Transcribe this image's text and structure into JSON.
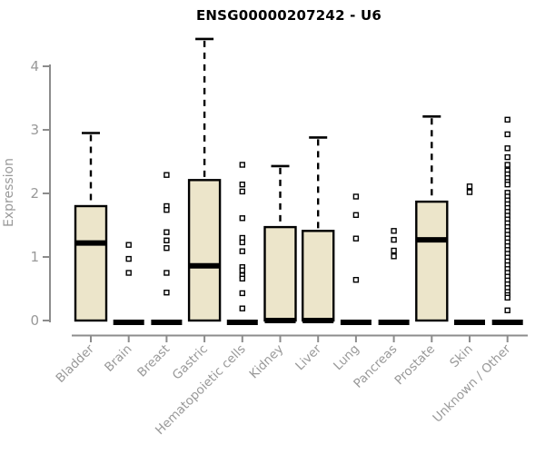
{
  "chart_data": {
    "type": "box",
    "title": "ENSG00000207242 - U6",
    "ylabel": "Expression",
    "xlabel": "",
    "ylim": [
      0,
      4
    ],
    "yticks": [
      0,
      1,
      2,
      3,
      4
    ],
    "grid": false,
    "legend": "none",
    "categories": [
      "Bladder",
      "Brain",
      "Breast",
      "Gastric",
      "Hematopoietic cells",
      "Kidney",
      "Liver",
      "Lung",
      "Pancreas",
      "Prostate",
      "Skin",
      "Unknown / Other"
    ],
    "series": [
      {
        "name": "Bladder",
        "q1": 0,
        "median": 1.22,
        "q3": 1.8,
        "whisker_low": 0,
        "whisker_high": 2.95,
        "outliers": []
      },
      {
        "name": "Brain",
        "q1": 0,
        "median": 0,
        "q3": 0,
        "whisker_low": 0,
        "whisker_high": 0,
        "outliers": [
          1.19,
          0.97,
          0.75
        ]
      },
      {
        "name": "Breast",
        "q1": 0,
        "median": 0,
        "q3": 0,
        "whisker_low": 0,
        "whisker_high": 0,
        "outliers": [
          2.29,
          1.8,
          1.74,
          1.39,
          1.26,
          1.14,
          0.75,
          0.44
        ]
      },
      {
        "name": "Gastric",
        "q1": 0,
        "median": 0.86,
        "q3": 2.21,
        "whisker_low": 0,
        "whisker_high": 4.43,
        "outliers": []
      },
      {
        "name": "Hematopoietic cells",
        "q1": 0,
        "median": 0,
        "q3": 0,
        "whisker_low": 0,
        "whisker_high": 0,
        "outliers": [
          2.45,
          2.14,
          2.03,
          1.61,
          1.3,
          1.23,
          1.09,
          0.84,
          0.79,
          0.71,
          0.66,
          0.43,
          0.19
        ]
      },
      {
        "name": "Kidney",
        "q1": 0,
        "median": 0,
        "q3": 1.47,
        "whisker_low": 0,
        "whisker_high": 2.43,
        "outliers": []
      },
      {
        "name": "Liver",
        "q1": 0,
        "median": 0,
        "q3": 1.41,
        "whisker_low": 0,
        "whisker_high": 2.88,
        "outliers": []
      },
      {
        "name": "Lung",
        "q1": 0,
        "median": 0,
        "q3": 0,
        "whisker_low": 0,
        "whisker_high": 0,
        "outliers": [
          1.95,
          1.66,
          1.29,
          0.64
        ]
      },
      {
        "name": "Pancreas",
        "q1": 0,
        "median": 0,
        "q3": 0,
        "whisker_low": 0,
        "whisker_high": 0,
        "outliers": [
          1.41,
          1.27,
          1.1,
          1.01
        ]
      },
      {
        "name": "Prostate",
        "q1": 0,
        "median": 1.27,
        "q3": 1.87,
        "whisker_low": 0,
        "whisker_high": 3.21,
        "outliers": []
      },
      {
        "name": "Skin",
        "q1": 0,
        "median": 0,
        "q3": 0,
        "whisker_low": 0,
        "whisker_high": 0,
        "outliers": [
          2.11,
          2.02
        ]
      },
      {
        "name": "Unknown / Other",
        "q1": 0,
        "median": 0,
        "q3": 0,
        "whisker_low": 0,
        "whisker_high": 0,
        "outliers": [
          3.16,
          2.93,
          2.71,
          2.57,
          2.45,
          2.36,
          2.3,
          2.24,
          2.18,
          2.14,
          2.01,
          1.95,
          1.89,
          1.83,
          1.77,
          1.71,
          1.65,
          1.59,
          1.53,
          1.47,
          1.41,
          1.35,
          1.29,
          1.23,
          1.17,
          1.11,
          1.05,
          0.99,
          0.93,
          0.87,
          0.81,
          0.75,
          0.69,
          0.63,
          0.57,
          0.51,
          0.45,
          0.4,
          0.36,
          0.16
        ]
      }
    ],
    "colors": {
      "box_fill": "#ece5ca",
      "box_border": "#000000",
      "median": "#000000",
      "whisker": "#000000",
      "outlier_border": "#000000",
      "outlier_fill": "#ffffff",
      "axis_line": "#8c8c8c",
      "tick_label": "#999999",
      "axis_label": "#999999",
      "title": "#000000",
      "background": "#ffffff"
    }
  }
}
